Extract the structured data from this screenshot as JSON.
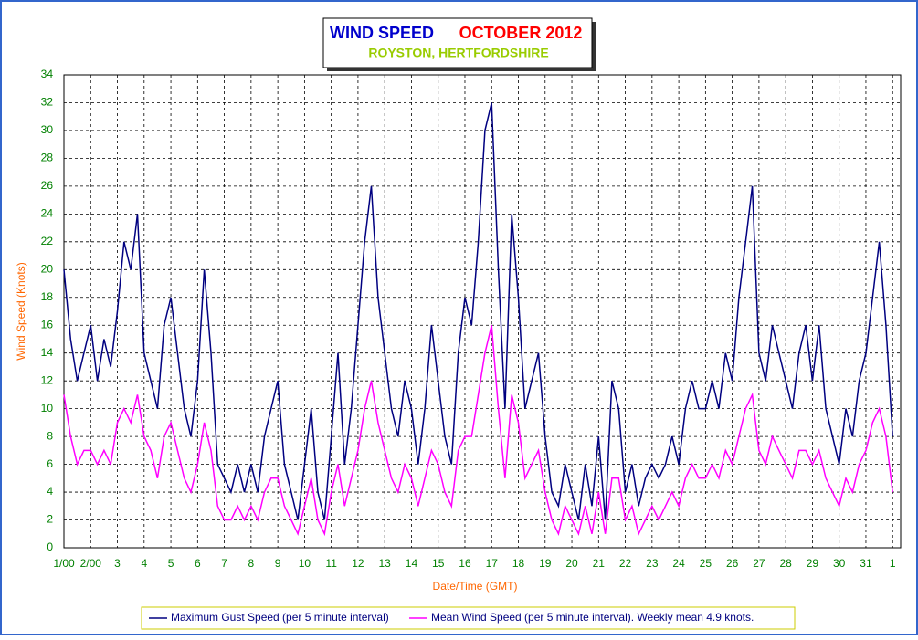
{
  "chart_data": {
    "type": "line",
    "title": "WIND SPEED",
    "title_date": "OCTOBER 2012",
    "subtitle": "ROYSTON, HERTFORDSHIRE",
    "x_label": "Date/Time (GMT)",
    "y_label": "Wind Speed (Knots)",
    "xlim": [
      0,
      31.3
    ],
    "ylim": [
      0,
      34
    ],
    "xticks": [
      {
        "value": 0,
        "label": "1/00"
      },
      {
        "value": 1,
        "label": "2/00"
      },
      {
        "value": 2,
        "label": "3"
      },
      {
        "value": 3,
        "label": "4"
      },
      {
        "value": 4,
        "label": "5"
      },
      {
        "value": 5,
        "label": "6"
      },
      {
        "value": 6,
        "label": "7"
      },
      {
        "value": 7,
        "label": "8"
      },
      {
        "value": 8,
        "label": "9"
      },
      {
        "value": 9,
        "label": "10"
      },
      {
        "value": 10,
        "label": "11"
      },
      {
        "value": 11,
        "label": "12"
      },
      {
        "value": 12,
        "label": "13"
      },
      {
        "value": 13,
        "label": "14"
      },
      {
        "value": 14,
        "label": "15"
      },
      {
        "value": 15,
        "label": "16"
      },
      {
        "value": 16,
        "label": "17"
      },
      {
        "value": 17,
        "label": "18"
      },
      {
        "value": 18,
        "label": "19"
      },
      {
        "value": 19,
        "label": "20"
      },
      {
        "value": 20,
        "label": "21"
      },
      {
        "value": 21,
        "label": "22"
      },
      {
        "value": 22,
        "label": "23"
      },
      {
        "value": 23,
        "label": "24"
      },
      {
        "value": 24,
        "label": "25"
      },
      {
        "value": 25,
        "label": "26"
      },
      {
        "value": 26,
        "label": "27"
      },
      {
        "value": 27,
        "label": "28"
      },
      {
        "value": 28,
        "label": "29"
      },
      {
        "value": 29,
        "label": "30"
      },
      {
        "value": 30,
        "label": "31"
      },
      {
        "value": 31,
        "label": "1"
      }
    ],
    "yticks": [
      0,
      2,
      4,
      6,
      8,
      10,
      12,
      14,
      16,
      18,
      20,
      22,
      24,
      26,
      28,
      30,
      32,
      34
    ],
    "grid": true,
    "x": [
      0,
      0.25,
      0.5,
      0.75,
      1,
      1.25,
      1.5,
      1.75,
      2,
      2.25,
      2.5,
      2.75,
      3,
      3.25,
      3.5,
      3.75,
      4,
      4.25,
      4.5,
      4.75,
      5,
      5.25,
      5.5,
      5.75,
      6,
      6.25,
      6.5,
      6.75,
      7,
      7.25,
      7.5,
      7.75,
      8,
      8.25,
      8.5,
      8.75,
      9,
      9.25,
      9.5,
      9.75,
      10,
      10.25,
      10.5,
      10.75,
      11,
      11.25,
      11.5,
      11.75,
      12,
      12.25,
      12.5,
      12.75,
      13,
      13.25,
      13.5,
      13.75,
      14,
      14.25,
      14.5,
      14.75,
      15,
      15.25,
      15.5,
      15.75,
      16,
      16.25,
      16.5,
      16.75,
      17,
      17.25,
      17.5,
      17.75,
      18,
      18.25,
      18.5,
      18.75,
      19,
      19.25,
      19.5,
      19.75,
      20,
      20.25,
      20.5,
      20.75,
      21,
      21.25,
      21.5,
      21.75,
      22,
      22.25,
      22.5,
      22.75,
      23,
      23.25,
      23.5,
      23.75,
      24,
      24.25,
      24.5,
      24.75,
      25,
      25.25,
      25.5,
      25.75,
      26,
      26.25,
      26.5,
      26.75,
      27,
      27.25,
      27.5,
      27.75,
      28,
      28.25,
      28.5,
      28.75,
      29,
      29.25,
      29.5,
      29.75,
      30,
      30.25,
      30.5,
      30.75,
      31
    ],
    "series": [
      {
        "name": "Maximum Gust Speed (per 5 minute interval)",
        "color": "#000080",
        "values": [
          20,
          15,
          12,
          14,
          16,
          12,
          15,
          13,
          17,
          22,
          20,
          24,
          14,
          12,
          10,
          16,
          18,
          14,
          10,
          8,
          12,
          20,
          14,
          6,
          5,
          4,
          6,
          4,
          6,
          4,
          8,
          10,
          12,
          6,
          4,
          2,
          6,
          10,
          4,
          2,
          8,
          14,
          6,
          10,
          16,
          22,
          26,
          18,
          14,
          10,
          8,
          12,
          10,
          6,
          10,
          16,
          12,
          8,
          6,
          14,
          18,
          16,
          22,
          30,
          32,
          20,
          10,
          24,
          18,
          10,
          12,
          14,
          8,
          4,
          3,
          6,
          4,
          2,
          6,
          3,
          8,
          2,
          12,
          10,
          4,
          6,
          3,
          5,
          6,
          5,
          6,
          8,
          6,
          10,
          12,
          10,
          10,
          12,
          10,
          14,
          12,
          18,
          22,
          26,
          14,
          12,
          16,
          14,
          12,
          10,
          14,
          16,
          12,
          16,
          10,
          8,
          6,
          10,
          8,
          12,
          14,
          18,
          22,
          16,
          8
        ]
      },
      {
        "name": "Mean Wind Speed (per 5 minute interval). Weekly mean 4.9 knots.",
        "color": "#ff00ff",
        "values": [
          11,
          8,
          6,
          7,
          7,
          6,
          7,
          6,
          9,
          10,
          9,
          11,
          8,
          7,
          5,
          8,
          9,
          7,
          5,
          4,
          6,
          9,
          7,
          3,
          2,
          2,
          3,
          2,
          3,
          2,
          4,
          5,
          5,
          3,
          2,
          1,
          3,
          5,
          2,
          1,
          4,
          6,
          3,
          5,
          7,
          10,
          12,
          9,
          7,
          5,
          4,
          6,
          5,
          3,
          5,
          7,
          6,
          4,
          3,
          7,
          8,
          8,
          11,
          14,
          16,
          10,
          5,
          11,
          9,
          5,
          6,
          7,
          4,
          2,
          1,
          3,
          2,
          1,
          3,
          1,
          4,
          1,
          5,
          5,
          2,
          3,
          1,
          2,
          3,
          2,
          3,
          4,
          3,
          5,
          6,
          5,
          5,
          6,
          5,
          7,
          6,
          8,
          10,
          11,
          7,
          6,
          8,
          7,
          6,
          5,
          7,
          7,
          6,
          7,
          5,
          4,
          3,
          5,
          4,
          6,
          7,
          9,
          10,
          8,
          4
        ]
      }
    ]
  }
}
